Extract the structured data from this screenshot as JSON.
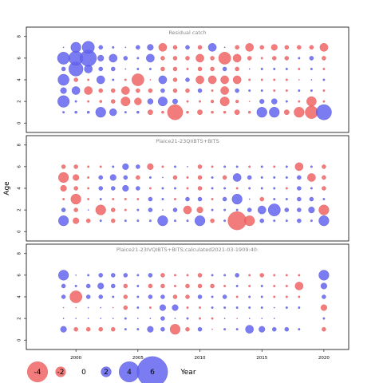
{
  "chart_data": {
    "type": "scatter",
    "subtype": "bubble",
    "xlabel": "Year",
    "ylabel": "Age",
    "xlim": [
      1996,
      2022
    ],
    "ylim": [
      -0.5,
      8.5
    ],
    "x_ticks": [
      2000,
      2005,
      2010,
      2015,
      2020
    ],
    "y_ticks": [
      0,
      2,
      4,
      6,
      8
    ],
    "colors": {
      "positive": "#6464f0",
      "negative": "#f06464"
    },
    "legend": {
      "placement": "bottom-left",
      "values": [
        -4,
        -2,
        0,
        2,
        4,
        6
      ],
      "labels": [
        "-4",
        "-2",
        "0",
        "2",
        "4",
        "6"
      ]
    },
    "years": [
      1999,
      2000,
      2001,
      2002,
      2003,
      2004,
      2005,
      2006,
      2007,
      2008,
      2009,
      2010,
      2011,
      2012,
      2013,
      2014,
      2015,
      2016,
      2017,
      2018,
      2019,
      2020
    ],
    "panels": [
      {
        "title": "Residual catch",
        "ages": [
          1,
          2,
          3,
          4,
          5,
          6,
          7
        ],
        "values": [
          [
            0.4,
            0.5,
            0.5,
            2.0,
            1.4,
            0.4,
            0.5,
            -1.0,
            -0.5,
            -3.0,
            -0.5,
            -1.0,
            -0.5,
            -0.5,
            -1.0,
            -0.5,
            2.0,
            2.0,
            -1.0,
            -2.0,
            -2.5,
            3.0
          ],
          [
            2.3,
            0.4,
            -0.4,
            -0.5,
            -0.8,
            -1.8,
            -1.4,
            1.1,
            1.8,
            1.0,
            -0.4,
            -0.4,
            -0.6,
            -1.8,
            -0.6,
            -0.2,
            0.9,
            1.1,
            0.4,
            -0.4,
            -1.9,
            -0.4
          ],
          [
            1.2,
            1.6,
            -1.6,
            -0.8,
            -0.8,
            -1.6,
            -0.8,
            -0.8,
            0.8,
            -0.8,
            -0.8,
            0.8,
            -0.4,
            -1.6,
            0.8,
            0.4,
            0.4,
            -0.4,
            -0.4,
            0.4,
            0.4,
            -0.4
          ],
          [
            2.2,
            -0.8,
            -0.4,
            1.6,
            0.4,
            -0.4,
            -2.4,
            -0.2,
            1.6,
            -0.8,
            0.8,
            -1.6,
            -1.6,
            -1.6,
            -1.6,
            -0.4,
            -0.4,
            -0.4,
            -0.4,
            -0.2,
            0.2,
            0.4
          ],
          [
            0.8,
            2.8,
            1.6,
            0.8,
            0.8,
            0.2,
            0.4,
            0.4,
            -0.8,
            -0.8,
            -0.4,
            -0.8,
            -0.8,
            0.8,
            -0.8,
            0.2,
            0.4,
            0.4,
            0.4,
            -0.4,
            0.4,
            -0.4
          ],
          [
            2.4,
            2.8,
            3.2,
            1.2,
            1.6,
            0.8,
            0.4,
            1.6,
            -0.8,
            -0.8,
            -0.8,
            -1.6,
            -0.8,
            -2.4,
            -1.6,
            -0.8,
            -0.4,
            -0.8,
            -0.8,
            0.4,
            0.8,
            -0.8
          ],
          [
            0.2,
            2.0,
            2.4,
            0.8,
            0.4,
            0.2,
            0.8,
            1.2,
            -1.6,
            -0.8,
            0.8,
            -0.8,
            1.6,
            0.2,
            -0.8,
            -1.6,
            -0.8,
            -1.2,
            -0.8,
            -0.8,
            -0.8,
            -1.6
          ]
        ]
      },
      {
        "title": "Plaice21-23QIIBTS+BITS",
        "ages": [
          1,
          2,
          3,
          4,
          5,
          6
        ],
        "values": [
          [
            2.0,
            -1.2,
            -0.8,
            0.4,
            -0.8,
            0.4,
            0.4,
            0.4,
            2.0,
            0.4,
            0.4,
            2.0,
            -0.8,
            0.4,
            -3.6,
            -2.0,
            0.8,
            0.4,
            0.4,
            0.8,
            0.4,
            2.0
          ],
          [
            0.8,
            -0.8,
            0.2,
            -2.0,
            -0.8,
            -0.4,
            0.4,
            0.8,
            0.2,
            0.8,
            -1.6,
            -1.2,
            0.4,
            0.4,
            0.4,
            0.8,
            1.6,
            2.4,
            0.8,
            0.8,
            1.2,
            -2.0
          ],
          [
            -0.4,
            -2.0,
            -0.4,
            0.4,
            -0.4,
            -0.4,
            -0.4,
            0.8,
            0.4,
            -0.4,
            0.8,
            0.8,
            -0.4,
            0.8,
            2.0,
            0.2,
            -0.8,
            0.4,
            0.4,
            0.8,
            0.8,
            0.4
          ],
          [
            -1.2,
            -0.8,
            -0.4,
            0.8,
            0.8,
            1.2,
            0.8,
            -0.4,
            0.4,
            0.4,
            -0.4,
            -0.8,
            0.4,
            0.4,
            -0.4,
            0.4,
            0.4,
            0.4,
            -0.4,
            0.8,
            0.4,
            -0.8
          ],
          [
            -2.0,
            -1.2,
            -0.4,
            0.8,
            1.2,
            0.8,
            -0.8,
            0.4,
            0.2,
            -0.8,
            -0.4,
            -0.8,
            0.4,
            -0.8,
            1.6,
            0.8,
            0.4,
            0.4,
            0.4,
            0.8,
            -1.6,
            -0.8
          ],
          [
            -0.8,
            -0.8,
            -0.4,
            -0.4,
            0.4,
            1.2,
            0.8,
            -1.2,
            -0.4,
            0.4,
            0.2,
            -0.8,
            -0.4,
            0.4,
            0.4,
            -0.4,
            0.4,
            -0.4,
            0.4,
            -1.6,
            0.4,
            -0.8
          ]
        ]
      },
      {
        "title": "Plaice21-23IVQIBTS+BITS;calculated2021-03-1909:40:",
        "ages": [
          1,
          2,
          3,
          4,
          5,
          6
        ],
        "values": [
          [
            1.2,
            -0.8,
            -0.8,
            -0.8,
            -0.8,
            0.4,
            0.4,
            1.2,
            0.8,
            -2.0,
            -0.8,
            0.8,
            -0.2,
            0.4,
            0.4,
            1.6,
            1.2,
            0.8,
            0.8,
            0.4,
            0,
            -0.8
          ],
          [
            0.2,
            0.2,
            0.2,
            0.2,
            0.2,
            0.4,
            0.2,
            0.2,
            0.8,
            0.2,
            0.4,
            -0.4,
            -0.4,
            0.2,
            -0.2,
            0.2,
            0.2,
            0.2,
            0,
            0,
            0,
            0.4
          ],
          [
            -0.2,
            -0.2,
            0.2,
            0.2,
            -0.2,
            -0.8,
            0.4,
            -0.4,
            1.2,
            1.2,
            -0.4,
            -0.4,
            0.4,
            0.4,
            0.4,
            0.4,
            0.4,
            0.2,
            0.4,
            0.4,
            0,
            -1.2
          ],
          [
            0.8,
            -2.4,
            0.8,
            0.8,
            0.4,
            -0.8,
            0.4,
            0.8,
            0.8,
            -0.8,
            -0.8,
            0.8,
            0.4,
            0.8,
            -0.4,
            0.4,
            0.4,
            -0.4,
            -0.4,
            -0.4,
            0,
            0.8
          ],
          [
            0.8,
            0.4,
            0.8,
            1.2,
            0.8,
            -0.8,
            0.4,
            -0.8,
            -0.8,
            -0.4,
            -0.8,
            -0.8,
            -0.8,
            -0.4,
            0.4,
            -0.4,
            0.4,
            -0.4,
            -0.4,
            -1.6,
            0,
            1.2
          ],
          [
            2.0,
            0.2,
            0.4,
            0.8,
            0.8,
            0.8,
            0.4,
            0.8,
            -0.8,
            -0.4,
            -0.4,
            -0.8,
            0.4,
            0.4,
            0.8,
            -0.4,
            -0.8,
            -0.4,
            -0.4,
            -0.4,
            0,
            2.0
          ]
        ]
      }
    ]
  }
}
